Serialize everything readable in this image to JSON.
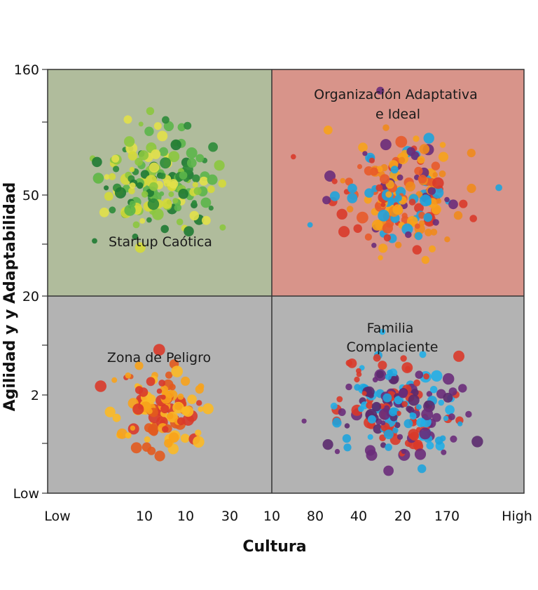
{
  "chart_data": {
    "type": "scatter",
    "xlabel": "Cultura",
    "ylabel": "Agilidad y y Adaptabilidad",
    "x_tick_labels": [
      "Low",
      "10",
      "10",
      "30",
      "10",
      "80",
      "40",
      "20",
      "170",
      "High"
    ],
    "y_tick_labels": [
      "160",
      "50",
      "20",
      "2",
      "Low"
    ],
    "quadrants": [
      {
        "label": "Startup Caótica",
        "position": "top-left",
        "color": "#b0bc9c"
      },
      {
        "label": "Organización Adaptativa e Ideal",
        "position": "top-right",
        "color": "#d8948a"
      },
      {
        "label": "Zona de Peligro",
        "position": "bottom-left",
        "color": "#b3b3b3"
      },
      {
        "label": "Familia Complaciente",
        "position": "bottom-right",
        "color": "#b3b3b3"
      }
    ],
    "clusters": [
      {
        "quadrant": "top-left",
        "colors": [
          "#2e8b3a",
          "#1f7a33",
          "#5cb54a",
          "#8cc63f",
          "#d4d93a",
          "#e2e04a"
        ],
        "count": 170
      },
      {
        "quadrant": "top-right",
        "colors": [
          "#d93a2a",
          "#e85a2a",
          "#f7a21b",
          "#6a2c7a",
          "#1fa3dc",
          "#f08a1c"
        ],
        "count": 190
      },
      {
        "quadrant": "bottom-left",
        "colors": [
          "#d93a2a",
          "#e25a1e",
          "#f7a21b",
          "#fbb925"
        ],
        "count": 120
      },
      {
        "quadrant": "bottom-right",
        "colors": [
          "#6a2c7a",
          "#5b2a6e",
          "#1fa3dc",
          "#22aee6",
          "#d93a2a"
        ],
        "count": 200
      }
    ],
    "grid": false,
    "legend": "none"
  }
}
